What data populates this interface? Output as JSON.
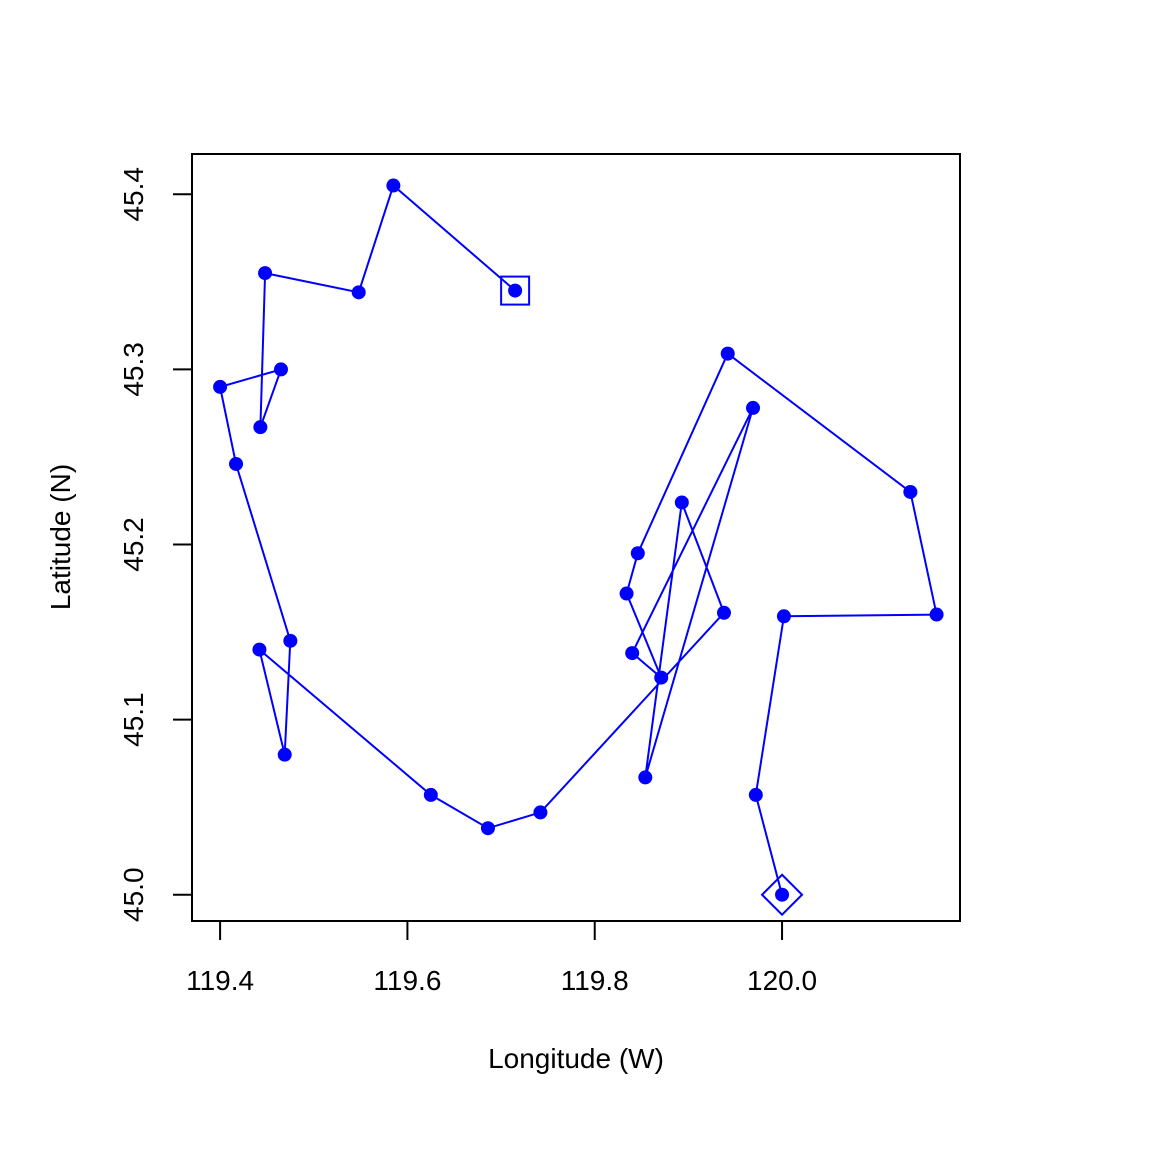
{
  "chart_data": {
    "type": "line",
    "title": "",
    "xlabel": "Longitude (W)",
    "ylabel": "Latitude (N)",
    "xlim": [
      119.37,
      120.19
    ],
    "ylim": [
      44.985,
      45.423
    ],
    "x_ticks": [
      "119.4",
      "119.6",
      "119.8",
      "120.0"
    ],
    "y_ticks": [
      "45.0",
      "45.1",
      "45.2",
      "45.3",
      "45.4"
    ],
    "grid": false,
    "legend": "none",
    "series": [
      {
        "color": "#0000ff",
        "marker": "filled-circle",
        "x": [
          120.0,
          119.972,
          120.002,
          120.165,
          120.137,
          119.942,
          119.846,
          119.834,
          119.871,
          119.84,
          119.969,
          119.854,
          119.893,
          119.938,
          119.742,
          119.686,
          119.625,
          119.442,
          119.469,
          119.475,
          119.417,
          119.4,
          119.465,
          119.443,
          119.448,
          119.548,
          119.585,
          119.715
        ],
        "y": [
          45.0,
          45.057,
          45.159,
          45.16,
          45.23,
          45.309,
          45.195,
          45.172,
          45.124,
          45.138,
          45.278,
          45.067,
          45.224,
          45.161,
          45.047,
          45.038,
          45.057,
          45.14,
          45.08,
          45.145,
          45.246,
          45.29,
          45.3,
          45.267,
          45.355,
          45.344,
          45.405,
          45.345
        ]
      }
    ],
    "start_marker": {
      "shape": "diamond",
      "x": 120.0,
      "y": 45.0
    },
    "end_marker": {
      "shape": "square",
      "x": 119.715,
      "y": 45.345
    }
  }
}
